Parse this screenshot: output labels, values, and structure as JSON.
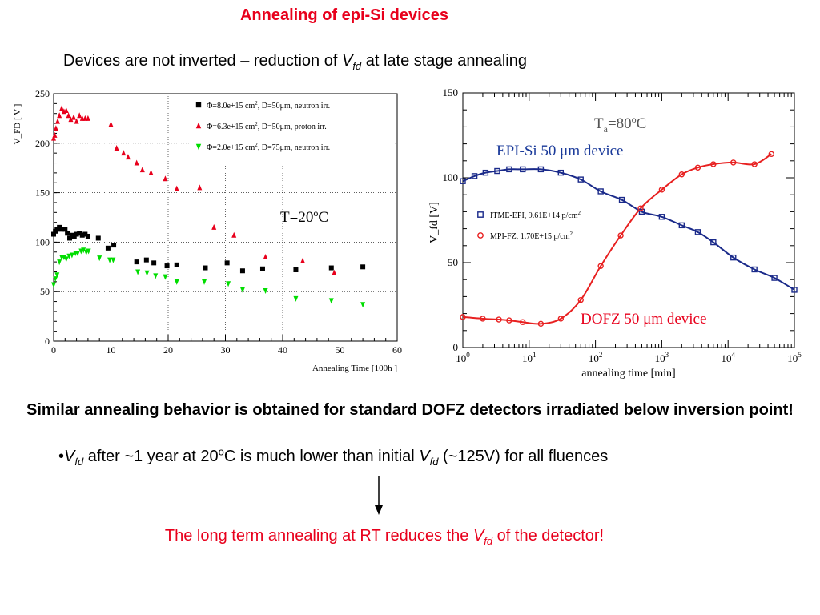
{
  "title": "Annealing of epi-Si devices",
  "subtitle": {
    "text_before": "Devices are not inverted – reduction of ",
    "v": "V",
    "sub": "fd",
    "text_after": " at late stage annealing"
  },
  "conclusion": {
    "line": "Similar annealing behavior is obtained for standard DOFZ detectors irradiated below inversion point!"
  },
  "bullet": {
    "marker": "•",
    "v": "V",
    "sub": "fd",
    "mid": " after ~1 year at 20",
    "sup": "o",
    "mid2": "C is much lower than initial ",
    "v2": "V",
    "sub2": "fd",
    "end": " (~125V) for all fluences"
  },
  "final": {
    "before": "The long term annealing at RT reduces the ",
    "v": "V",
    "sub": "fd",
    "after": " of the detector!"
  },
  "colors": {
    "red_text": "#e8001c",
    "annot_blue": "#1a3a9a",
    "annot_red": "#e8001c",
    "neutron50": "#000000",
    "proton50": "#e8001c",
    "neutron75": "#00dd00",
    "itme": "#1a2a8a",
    "mpi": "#e82020"
  },
  "chart_data": [
    {
      "type": "scatter",
      "title": "",
      "xlabel": "Annealing Time [100h ]",
      "ylabel": "V_FD [ V ]",
      "xlim": [
        0,
        60
      ],
      "ylim": [
        0,
        250
      ],
      "x_ticks": [
        0,
        10,
        20,
        30,
        40,
        50,
        60
      ],
      "y_ticks": [
        0,
        50,
        100,
        150,
        200,
        250
      ],
      "grid": true,
      "annotation": {
        "T": "T=20",
        "sup": "o",
        "unit": "C"
      },
      "series": [
        {
          "name": "Φ=8.0e+15 cm², D=50μm, neutron irr.",
          "legend_phi": "Φ=8.0e+15 cm",
          "legend_rest": ", D=50μm, neutron irr.",
          "marker": "square",
          "color": "#000000",
          "x": [
            0.0,
            0.3,
            0.6,
            1.0,
            1.4,
            2.0,
            2.4,
            2.8,
            3.2,
            3.6,
            4.0,
            4.5,
            5.0,
            5.5,
            6.0,
            7.8,
            9.5,
            10.5,
            14.5,
            16.2,
            17.5,
            19.8,
            21.5,
            26.5,
            30.3,
            33.0,
            36.5,
            42.3,
            48.5,
            54.0
          ],
          "y": [
            108,
            111,
            113,
            115,
            113,
            113,
            109,
            104,
            107,
            106,
            108,
            109,
            107,
            108,
            106,
            104,
            94,
            97,
            80,
            82,
            79,
            76,
            77,
            74,
            79,
            71,
            73,
            72,
            74,
            75
          ]
        },
        {
          "name": "Φ=6.3e+15 cm², D=50μm, proton irr.",
          "legend_phi": "Φ=6.3e+15 cm",
          "legend_rest": ", D=50μm, proton irr.",
          "marker": "triangle-up",
          "color": "#e8001c",
          "x": [
            0.0,
            0.2,
            0.4,
            0.7,
            1.0,
            1.4,
            1.8,
            2.2,
            2.6,
            3.0,
            3.5,
            4.0,
            4.5,
            5.0,
            5.5,
            6.0,
            10.0,
            11.0,
            12.2,
            13.0,
            14.5,
            15.5,
            17.0,
            19.5,
            21.5,
            25.5,
            28.0,
            31.5,
            37.0,
            43.5,
            49.0
          ],
          "y": [
            205,
            208,
            215,
            222,
            228,
            235,
            232,
            233,
            228,
            224,
            226,
            222,
            228,
            225,
            225,
            225,
            219,
            195,
            190,
            186,
            180,
            173,
            170,
            164,
            154,
            155,
            115,
            107,
            85,
            81,
            69
          ]
        },
        {
          "name": "Φ=2.0e+15 cm², D=75μm, neutron irr.",
          "legend_phi": "Φ=2.0e+15 cm",
          "legend_rest": ", D=75μm, neutron irr.",
          "marker": "triangle-down",
          "color": "#00dd00",
          "x": [
            0.0,
            0.3,
            0.6,
            1.0,
            1.4,
            1.8,
            2.2,
            2.7,
            3.2,
            3.8,
            4.2,
            4.8,
            5.2,
            5.7,
            6.1,
            8.0,
            9.8,
            10.4,
            14.7,
            16.3,
            17.8,
            19.5,
            21.5,
            26.3,
            30.5,
            33.0,
            37.0,
            42.3,
            48.5,
            54.0
          ],
          "y": [
            57,
            63,
            67,
            80,
            85,
            85,
            83,
            86,
            87,
            89,
            89,
            91,
            92,
            90,
            91,
            84,
            82,
            82,
            70,
            69,
            66,
            65,
            60,
            60,
            58,
            52,
            51,
            43,
            41,
            37
          ]
        }
      ]
    },
    {
      "type": "scatter",
      "title": "",
      "xlabel": "annealing time [min]",
      "ylabel": "V_fd [V]",
      "xscale": "log",
      "xlim": [
        1,
        100000
      ],
      "ylim": [
        0,
        150
      ],
      "x_ticks": [
        "10^0",
        "10^1",
        "10^2",
        "10^3",
        "10^4",
        "10^5"
      ],
      "y_ticks": [
        0,
        50,
        100,
        150
      ],
      "header": {
        "T": "T",
        "sub": "a",
        "eq": "=80",
        "sup": "o",
        "unit": "C"
      },
      "annotations": [
        {
          "name": "epi",
          "text": "EPI-Si 50 μm device"
        },
        {
          "name": "dofz",
          "text": "DOFZ 50 μm device"
        }
      ],
      "series": [
        {
          "name": "ITME-EPI, 9.61E+14 p/cm²",
          "legend_main": "ITME-EPI, 9.61E+14 p/cm",
          "marker": "open-square",
          "color": "#1a2a8a",
          "x": [
            1,
            1.5,
            2.2,
            3.3,
            5,
            8,
            15,
            30,
            60,
            120,
            250,
            500,
            1000,
            2000,
            3500,
            6000,
            12000,
            25000,
            50000,
            100000
          ],
          "y": [
            98,
            101,
            103,
            104,
            105,
            105,
            105,
            103,
            99,
            92,
            87,
            80,
            77,
            72,
            68,
            62,
            53,
            46,
            41,
            34
          ]
        },
        {
          "name": "MPI-FZ, 1.70E+15 p/cm²",
          "legend_main": "MPI-FZ, 1.70E+15 p/cm",
          "marker": "open-circle",
          "color": "#e82020",
          "x": [
            1,
            2,
            3.5,
            5,
            8,
            15,
            30,
            60,
            120,
            240,
            480,
            1000,
            2000,
            3500,
            6000,
            12000,
            25000,
            45000
          ],
          "y": [
            18,
            17,
            16.5,
            16,
            15,
            14,
            17,
            28,
            48,
            66,
            82,
            93,
            102,
            106,
            108,
            109,
            108,
            114
          ]
        }
      ],
      "fits": [
        {
          "name": "ITME-EPI fit",
          "color": "#1a2a8a"
        },
        {
          "name": "MPI-FZ fit",
          "color": "#e82020"
        }
      ]
    }
  ]
}
